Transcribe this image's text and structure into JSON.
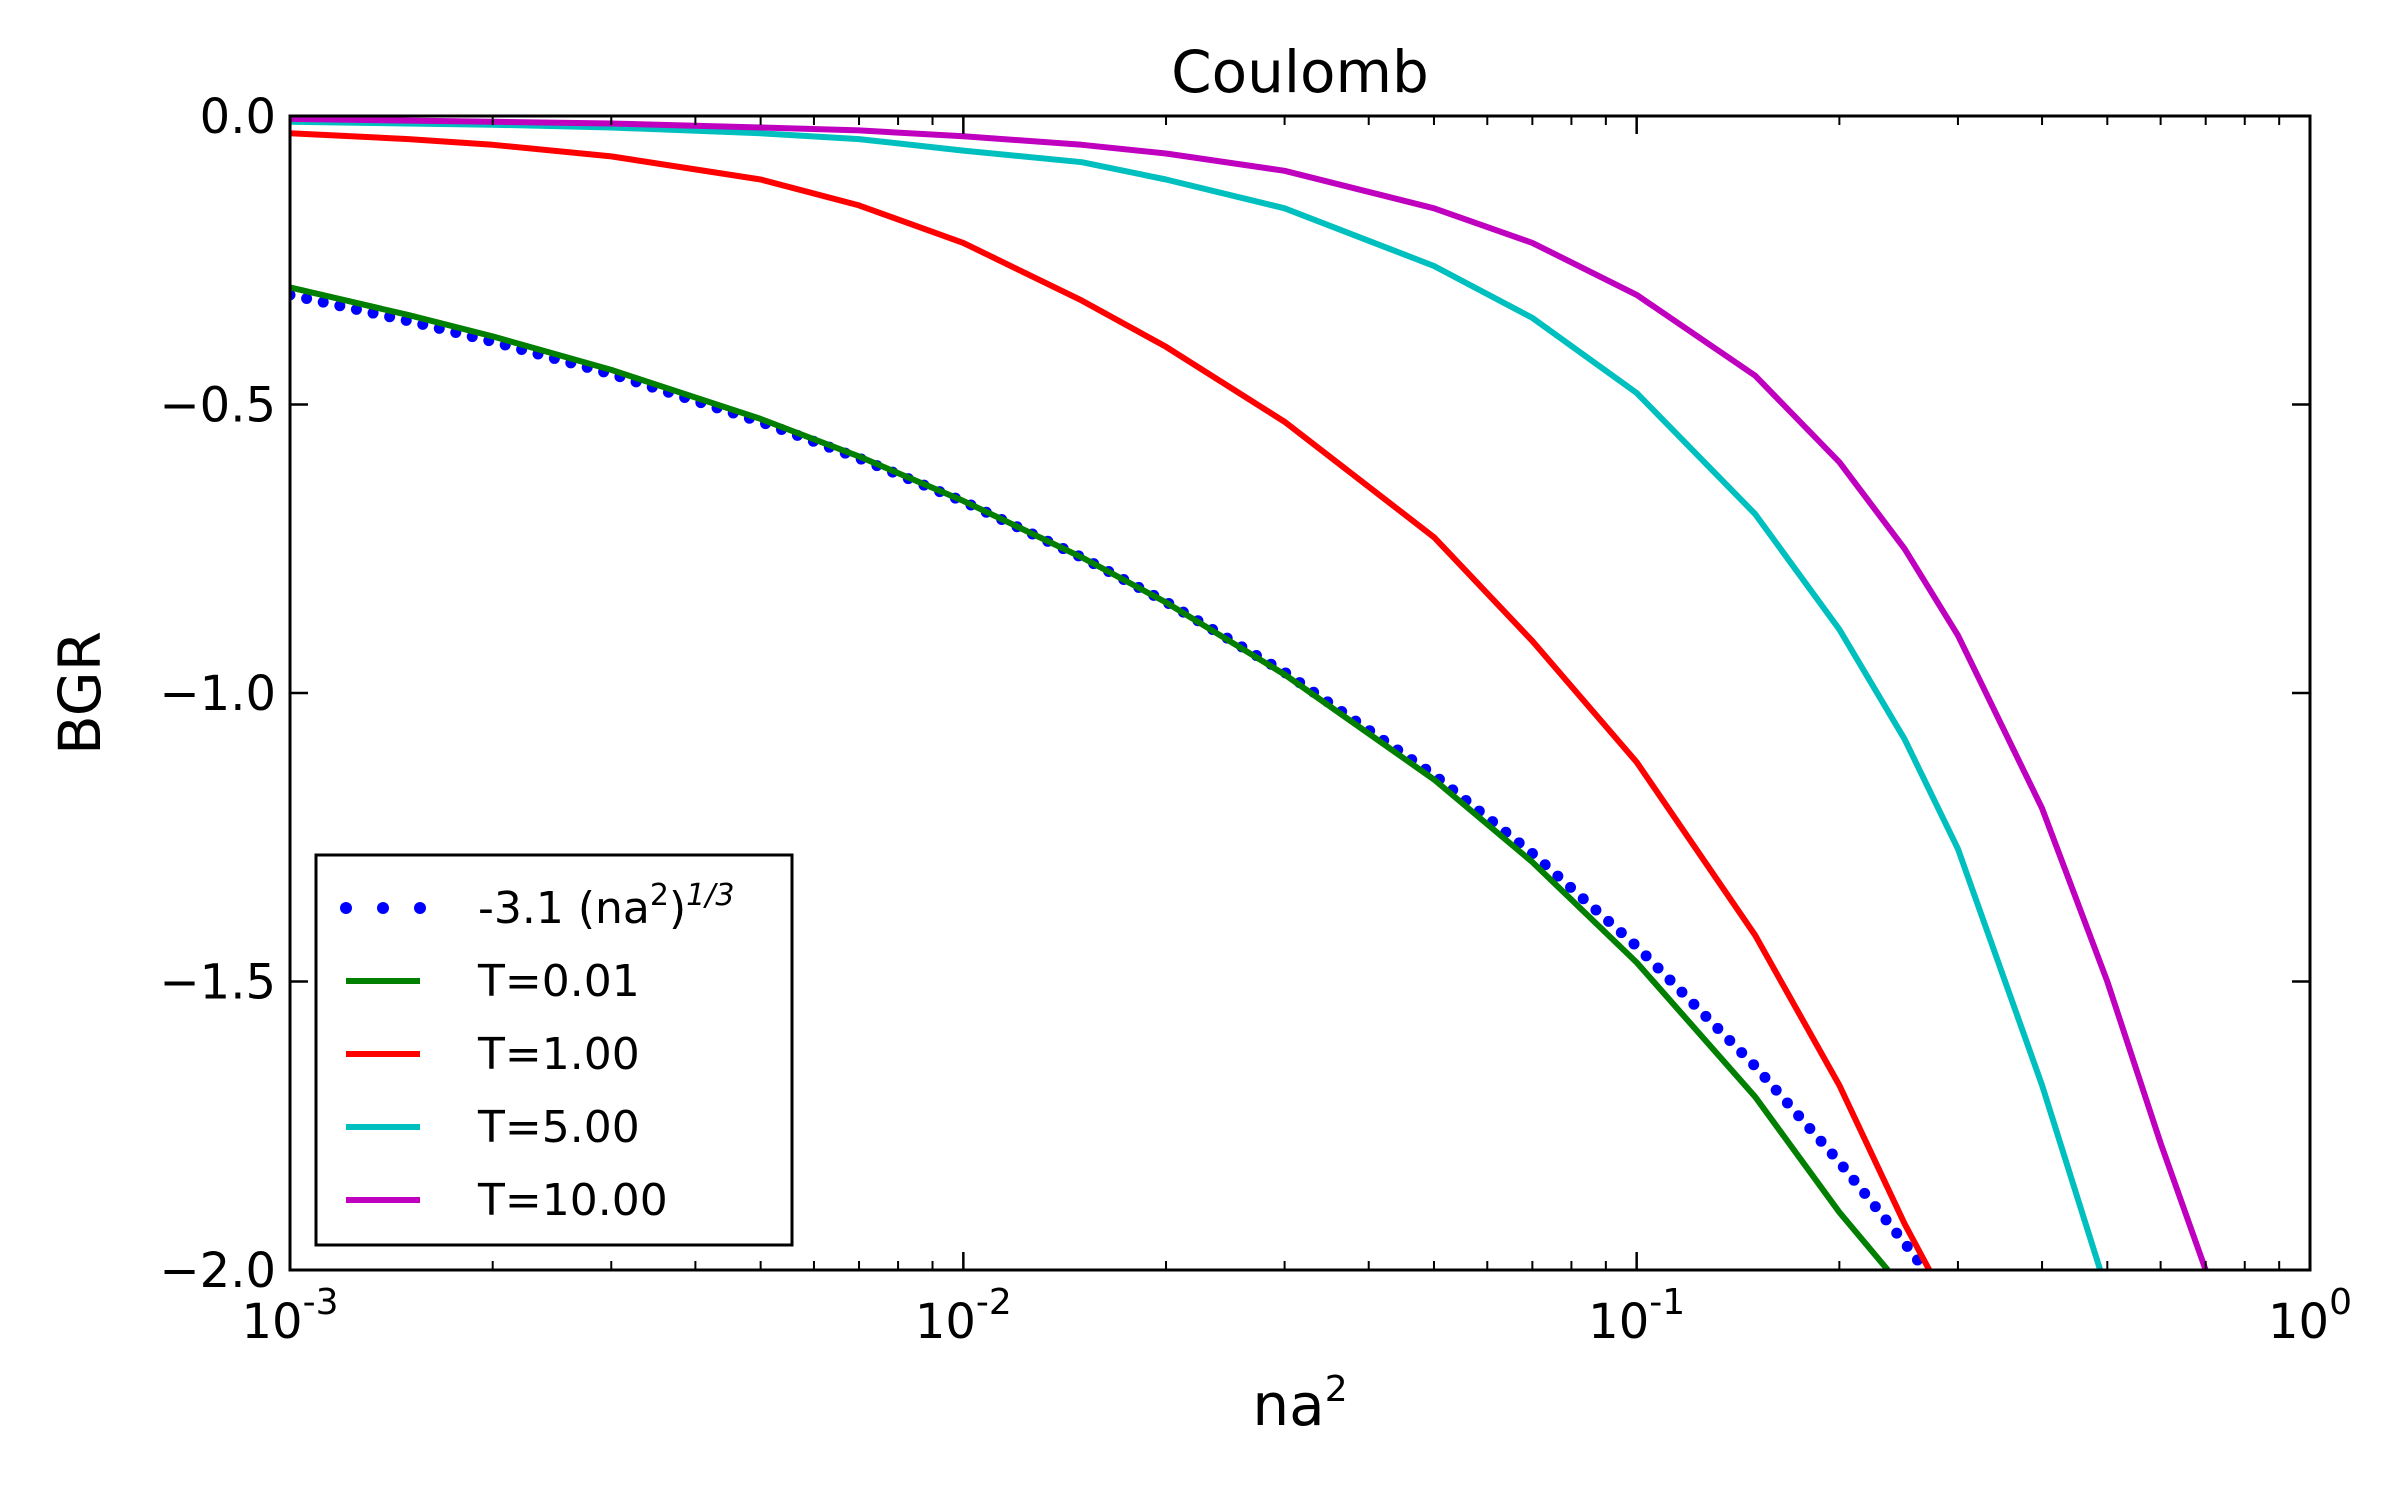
{
  "chart_data": {
    "type": "line",
    "title": "Coulomb",
    "xlabel": "na",
    "xlabel_sup": "2",
    "ylabel": "BGR",
    "x_scale": "log",
    "xlim": [
      0.001,
      1
    ],
    "ylim": [
      -2.0,
      0.0
    ],
    "grid": false,
    "legend_position": "lower-left",
    "x_ticks": [
      {
        "value": 0.001,
        "base": "10",
        "exp": "-3"
      },
      {
        "value": 0.01,
        "base": "10",
        "exp": "-2"
      },
      {
        "value": 0.1,
        "base": "10",
        "exp": "-1"
      },
      {
        "value": 1,
        "base": "10",
        "exp": "0"
      }
    ],
    "y_ticks": [
      {
        "value": 0.0,
        "label": "0.0"
      },
      {
        "value": -0.5,
        "label": "−0.5"
      },
      {
        "value": -1.0,
        "label": "−1.0"
      },
      {
        "value": -1.5,
        "label": "−1.5"
      },
      {
        "value": -2.0,
        "label": "−2.0"
      }
    ],
    "series": [
      {
        "name": "-3.1 (na²)¹ᐟ³",
        "legend_main": "-3.1 (na",
        "legend_sup1": "2",
        "legend_mid": ")",
        "legend_sup2": "1/3",
        "style": "dotted",
        "color": "#0000ff",
        "x": [
          0.001,
          0.0015,
          0.002,
          0.003,
          0.005,
          0.007,
          0.01,
          0.015,
          0.02,
          0.03,
          0.05,
          0.07,
          0.1,
          0.15,
          0.2,
          0.25,
          0.268
        ],
        "y": [
          -0.31,
          -0.355,
          -0.391,
          -0.447,
          -0.53,
          -0.593,
          -0.668,
          -0.765,
          -0.842,
          -0.964,
          -1.142,
          -1.278,
          -1.439,
          -1.647,
          -1.813,
          -1.953,
          -2.0
        ]
      },
      {
        "name": "T=0.01",
        "style": "solid",
        "color": "#007f00",
        "x": [
          0.001,
          0.0015,
          0.002,
          0.003,
          0.005,
          0.007,
          0.01,
          0.015,
          0.02,
          0.03,
          0.05,
          0.07,
          0.1,
          0.15,
          0.2,
          0.236
        ],
        "y": [
          -0.297,
          -0.345,
          -0.382,
          -0.44,
          -0.525,
          -0.59,
          -0.667,
          -0.765,
          -0.843,
          -0.968,
          -1.15,
          -1.293,
          -1.467,
          -1.7,
          -1.9,
          -2.0
        ]
      },
      {
        "name": "T=1.00",
        "style": "solid",
        "color": "#ff0000",
        "x": [
          0.001,
          0.0015,
          0.002,
          0.003,
          0.005,
          0.007,
          0.01,
          0.015,
          0.02,
          0.03,
          0.05,
          0.07,
          0.1,
          0.15,
          0.2,
          0.25,
          0.272
        ],
        "y": [
          -0.03,
          -0.04,
          -0.05,
          -0.07,
          -0.11,
          -0.155,
          -0.22,
          -0.32,
          -0.4,
          -0.53,
          -0.73,
          -0.91,
          -1.12,
          -1.42,
          -1.68,
          -1.92,
          -2.0
        ]
      },
      {
        "name": "T=5.00",
        "style": "solid",
        "color": "#00bfbf",
        "x": [
          0.001,
          0.002,
          0.003,
          0.005,
          0.007,
          0.01,
          0.015,
          0.02,
          0.03,
          0.05,
          0.07,
          0.1,
          0.15,
          0.2,
          0.25,
          0.3,
          0.4,
          0.488
        ],
        "y": [
          -0.01,
          -0.015,
          -0.02,
          -0.03,
          -0.04,
          -0.06,
          -0.08,
          -0.11,
          -0.16,
          -0.26,
          -0.35,
          -0.48,
          -0.69,
          -0.89,
          -1.08,
          -1.27,
          -1.68,
          -2.0
        ]
      },
      {
        "name": "T=10.00",
        "style": "solid",
        "color": "#bf00bf",
        "x": [
          0.001,
          0.002,
          0.003,
          0.005,
          0.007,
          0.01,
          0.015,
          0.02,
          0.03,
          0.05,
          0.07,
          0.1,
          0.15,
          0.2,
          0.25,
          0.3,
          0.4,
          0.5,
          0.6,
          0.7
        ],
        "y": [
          -0.005,
          -0.01,
          -0.013,
          -0.02,
          -0.025,
          -0.035,
          -0.05,
          -0.065,
          -0.095,
          -0.16,
          -0.22,
          -0.31,
          -0.45,
          -0.6,
          -0.75,
          -0.9,
          -1.2,
          -1.5,
          -1.78,
          -2.0
        ]
      }
    ]
  }
}
